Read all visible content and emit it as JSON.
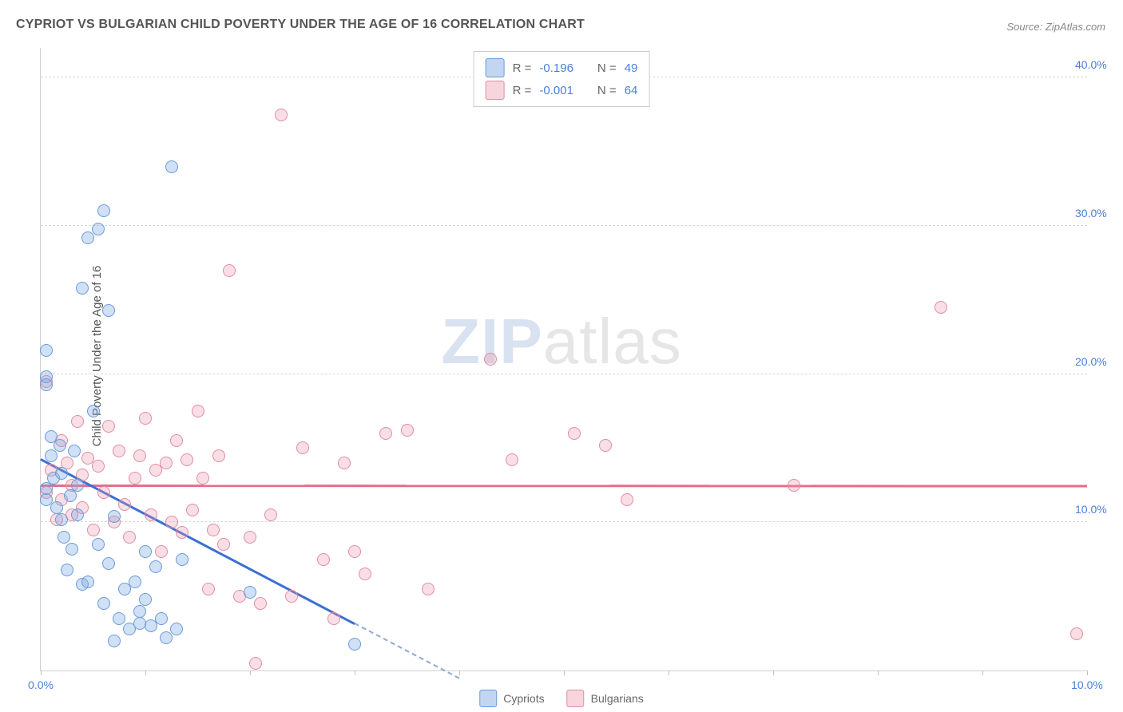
{
  "title": "CYPRIOT VS BULGARIAN CHILD POVERTY UNDER THE AGE OF 16 CORRELATION CHART",
  "source": "Source: ZipAtlas.com",
  "ylabel": "Child Poverty Under the Age of 16",
  "watermark_prefix": "ZIP",
  "watermark_suffix": "atlas",
  "chart": {
    "type": "scatter",
    "xlim": [
      0,
      10
    ],
    "ylim": [
      0,
      42
    ],
    "xticks": [
      0,
      1,
      2,
      3,
      4,
      5,
      6,
      7,
      8,
      9,
      10
    ],
    "xtick_labels_shown": {
      "0": "0.0%",
      "10": "10.0%"
    },
    "yticks": [
      10,
      20,
      30,
      40
    ],
    "ytick_labels": {
      "10": "10.0%",
      "20": "20.0%",
      "30": "30.0%",
      "40": "40.0%"
    },
    "background_color": "#ffffff",
    "grid_color": "#d8d8d8",
    "grid_dash": true,
    "axis_color": "#d0d0d0",
    "tick_label_color": "#4a7fd8",
    "tick_label_fontsize": 14,
    "title_fontsize": 16,
    "title_color": "#555555",
    "marker_size": 14,
    "series": [
      {
        "name": "Cypriots",
        "color_fill": "rgba(120,165,225,0.35)",
        "color_stroke": "#6a9bd8",
        "R": "-0.196",
        "N": "49",
        "trend": {
          "slope": -3.7,
          "intercept": 14.2,
          "color": "#3b6fd4",
          "dash_after_x": 3.0,
          "x_end": 4.0
        },
        "points": [
          [
            0.05,
            11.5
          ],
          [
            0.05,
            12.3
          ],
          [
            0.05,
            19.8
          ],
          [
            0.05,
            21.6
          ],
          [
            0.05,
            19.3
          ],
          [
            0.1,
            14.5
          ],
          [
            0.1,
            15.8
          ],
          [
            0.12,
            13.0
          ],
          [
            0.15,
            11.0
          ],
          [
            0.18,
            15.2
          ],
          [
            0.2,
            10.2
          ],
          [
            0.2,
            13.3
          ],
          [
            0.22,
            9.0
          ],
          [
            0.25,
            6.8
          ],
          [
            0.28,
            11.8
          ],
          [
            0.3,
            8.2
          ],
          [
            0.32,
            14.8
          ],
          [
            0.35,
            10.5
          ],
          [
            0.35,
            12.5
          ],
          [
            0.4,
            5.8
          ],
          [
            0.4,
            25.8
          ],
          [
            0.45,
            6.0
          ],
          [
            0.45,
            29.2
          ],
          [
            0.5,
            17.5
          ],
          [
            0.55,
            8.5
          ],
          [
            0.55,
            29.8
          ],
          [
            0.6,
            4.5
          ],
          [
            0.6,
            31.0
          ],
          [
            0.65,
            7.2
          ],
          [
            0.65,
            24.3
          ],
          [
            0.7,
            2.0
          ],
          [
            0.7,
            10.4
          ],
          [
            0.75,
            3.5
          ],
          [
            0.8,
            5.5
          ],
          [
            0.85,
            2.8
          ],
          [
            0.9,
            6.0
          ],
          [
            0.95,
            4.0
          ],
          [
            0.95,
            3.2
          ],
          [
            1.0,
            8.0
          ],
          [
            1.0,
            4.8
          ],
          [
            1.05,
            3.0
          ],
          [
            1.1,
            7.0
          ],
          [
            1.15,
            3.5
          ],
          [
            1.2,
            2.2
          ],
          [
            1.25,
            34.0
          ],
          [
            1.3,
            2.8
          ],
          [
            1.35,
            7.5
          ],
          [
            2.0,
            5.3
          ],
          [
            3.0,
            1.8
          ]
        ]
      },
      {
        "name": "Bulgarians",
        "color_fill": "rgba(235,150,170,0.30)",
        "color_stroke": "#e28ca0",
        "R": "-0.001",
        "N": "64",
        "trend": {
          "slope": -0.003,
          "intercept": 12.4,
          "color": "#e86b8c",
          "x_end": 10.0
        },
        "points": [
          [
            0.05,
            12.0
          ],
          [
            0.05,
            19.5
          ],
          [
            0.1,
            13.5
          ],
          [
            0.15,
            10.2
          ],
          [
            0.2,
            11.5
          ],
          [
            0.2,
            15.5
          ],
          [
            0.25,
            14.0
          ],
          [
            0.3,
            12.5
          ],
          [
            0.3,
            10.5
          ],
          [
            0.35,
            16.8
          ],
          [
            0.4,
            11.0
          ],
          [
            0.4,
            13.2
          ],
          [
            0.45,
            14.3
          ],
          [
            0.5,
            9.5
          ],
          [
            0.55,
            13.8
          ],
          [
            0.6,
            12.0
          ],
          [
            0.65,
            16.5
          ],
          [
            0.7,
            10.0
          ],
          [
            0.75,
            14.8
          ],
          [
            0.8,
            11.2
          ],
          [
            0.85,
            9.0
          ],
          [
            0.9,
            13.0
          ],
          [
            0.95,
            14.5
          ],
          [
            1.0,
            17.0
          ],
          [
            1.05,
            10.5
          ],
          [
            1.1,
            13.5
          ],
          [
            1.15,
            8.0
          ],
          [
            1.2,
            14.0
          ],
          [
            1.25,
            10.0
          ],
          [
            1.3,
            15.5
          ],
          [
            1.35,
            9.3
          ],
          [
            1.4,
            14.2
          ],
          [
            1.45,
            10.8
          ],
          [
            1.5,
            17.5
          ],
          [
            1.55,
            13.0
          ],
          [
            1.6,
            5.5
          ],
          [
            1.65,
            9.5
          ],
          [
            1.7,
            14.5
          ],
          [
            1.75,
            8.5
          ],
          [
            1.8,
            27.0
          ],
          [
            1.9,
            5.0
          ],
          [
            2.0,
            9.0
          ],
          [
            2.05,
            0.5
          ],
          [
            2.1,
            4.5
          ],
          [
            2.2,
            10.5
          ],
          [
            2.3,
            37.5
          ],
          [
            2.4,
            5.0
          ],
          [
            2.5,
            15.0
          ],
          [
            2.7,
            7.5
          ],
          [
            2.8,
            3.5
          ],
          [
            2.9,
            14.0
          ],
          [
            3.0,
            8.0
          ],
          [
            3.1,
            6.5
          ],
          [
            3.3,
            16.0
          ],
          [
            3.5,
            16.2
          ],
          [
            3.7,
            5.5
          ],
          [
            4.3,
            21.0
          ],
          [
            4.5,
            14.2
          ],
          [
            5.1,
            16.0
          ],
          [
            5.4,
            15.2
          ],
          [
            5.6,
            11.5
          ],
          [
            7.2,
            12.5
          ],
          [
            8.6,
            24.5
          ],
          [
            9.9,
            2.5
          ]
        ]
      }
    ],
    "legend_top": {
      "position": "top-center",
      "rows": [
        {
          "swatch": "blue",
          "r_label": "R =",
          "r_val": "-0.196",
          "n_label": "N =",
          "n_val": "49"
        },
        {
          "swatch": "pink",
          "r_label": "R =",
          "r_val": "-0.001",
          "n_label": "N =",
          "n_val": "64"
        }
      ]
    },
    "legend_bottom": {
      "items": [
        {
          "swatch": "blue",
          "label": "Cypriots"
        },
        {
          "swatch": "pink",
          "label": "Bulgarians"
        }
      ]
    }
  }
}
